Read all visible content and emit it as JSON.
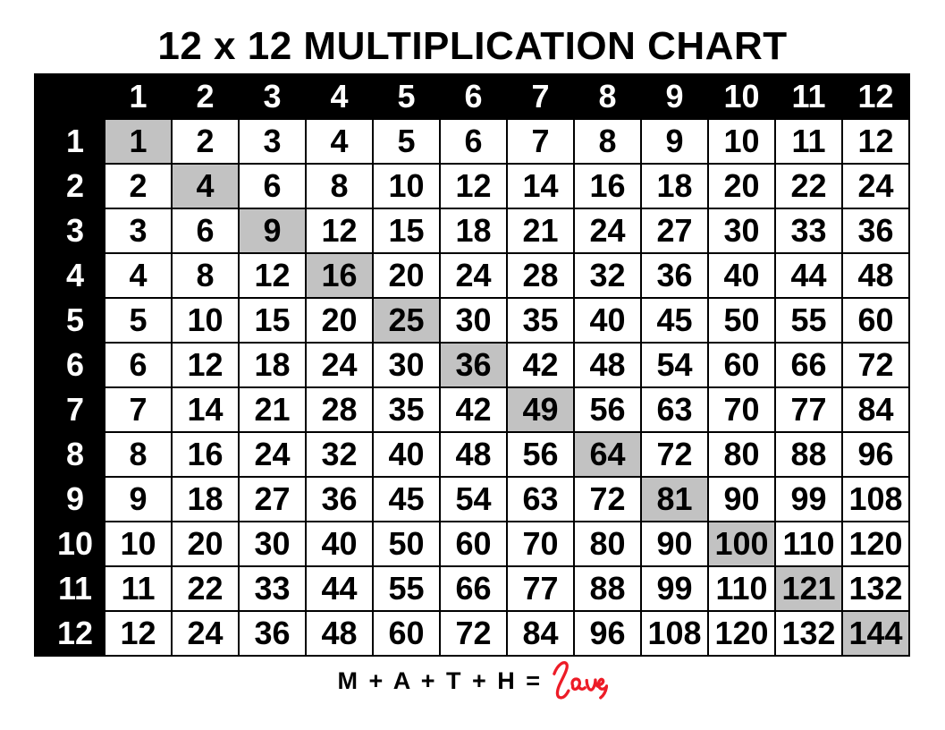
{
  "title": "12 x 12 MULTIPLICATION CHART",
  "table": {
    "corner_label": "",
    "column_headers": [
      "1",
      "2",
      "3",
      "4",
      "5",
      "6",
      "7",
      "8",
      "9",
      "10",
      "11",
      "12"
    ],
    "row_headers": [
      "1",
      "2",
      "3",
      "4",
      "5",
      "6",
      "7",
      "8",
      "9",
      "10",
      "11",
      "12"
    ],
    "rows": [
      [
        1,
        2,
        3,
        4,
        5,
        6,
        7,
        8,
        9,
        10,
        11,
        12
      ],
      [
        2,
        4,
        6,
        8,
        10,
        12,
        14,
        16,
        18,
        20,
        22,
        24
      ],
      [
        3,
        6,
        9,
        12,
        15,
        18,
        21,
        24,
        27,
        30,
        33,
        36
      ],
      [
        4,
        8,
        12,
        16,
        20,
        24,
        28,
        32,
        36,
        40,
        44,
        48
      ],
      [
        5,
        10,
        15,
        20,
        25,
        30,
        35,
        40,
        45,
        50,
        55,
        60
      ],
      [
        6,
        12,
        18,
        24,
        30,
        36,
        42,
        48,
        54,
        60,
        66,
        72
      ],
      [
        7,
        14,
        21,
        28,
        35,
        42,
        49,
        56,
        63,
        70,
        77,
        84
      ],
      [
        8,
        16,
        24,
        32,
        40,
        48,
        56,
        64,
        72,
        80,
        88,
        96
      ],
      [
        9,
        18,
        27,
        36,
        45,
        54,
        63,
        72,
        81,
        90,
        99,
        108
      ],
      [
        10,
        20,
        30,
        40,
        50,
        60,
        70,
        80,
        90,
        100,
        110,
        120
      ],
      [
        11,
        22,
        33,
        44,
        55,
        66,
        77,
        88,
        99,
        110,
        121,
        132
      ],
      [
        12,
        24,
        36,
        48,
        60,
        72,
        84,
        96,
        108,
        120,
        132,
        144
      ]
    ],
    "highlight_rule": "diagonal perfect-square cells shaded gray",
    "highlighted_values": [
      1,
      4,
      9,
      16,
      25,
      36,
      49,
      64,
      81,
      100,
      121,
      144
    ]
  },
  "footer": {
    "equation": "M + A + T + H =",
    "love_word": "love"
  },
  "colors": {
    "title_color": "#000000",
    "header_bg": "#000000",
    "header_text": "#ffffff",
    "grid_line": "#000000",
    "cell_bg": "#ffffff",
    "cell_text": "#000000",
    "diag_bg": "#c2c2c2",
    "love_red": "#ed1c27"
  }
}
